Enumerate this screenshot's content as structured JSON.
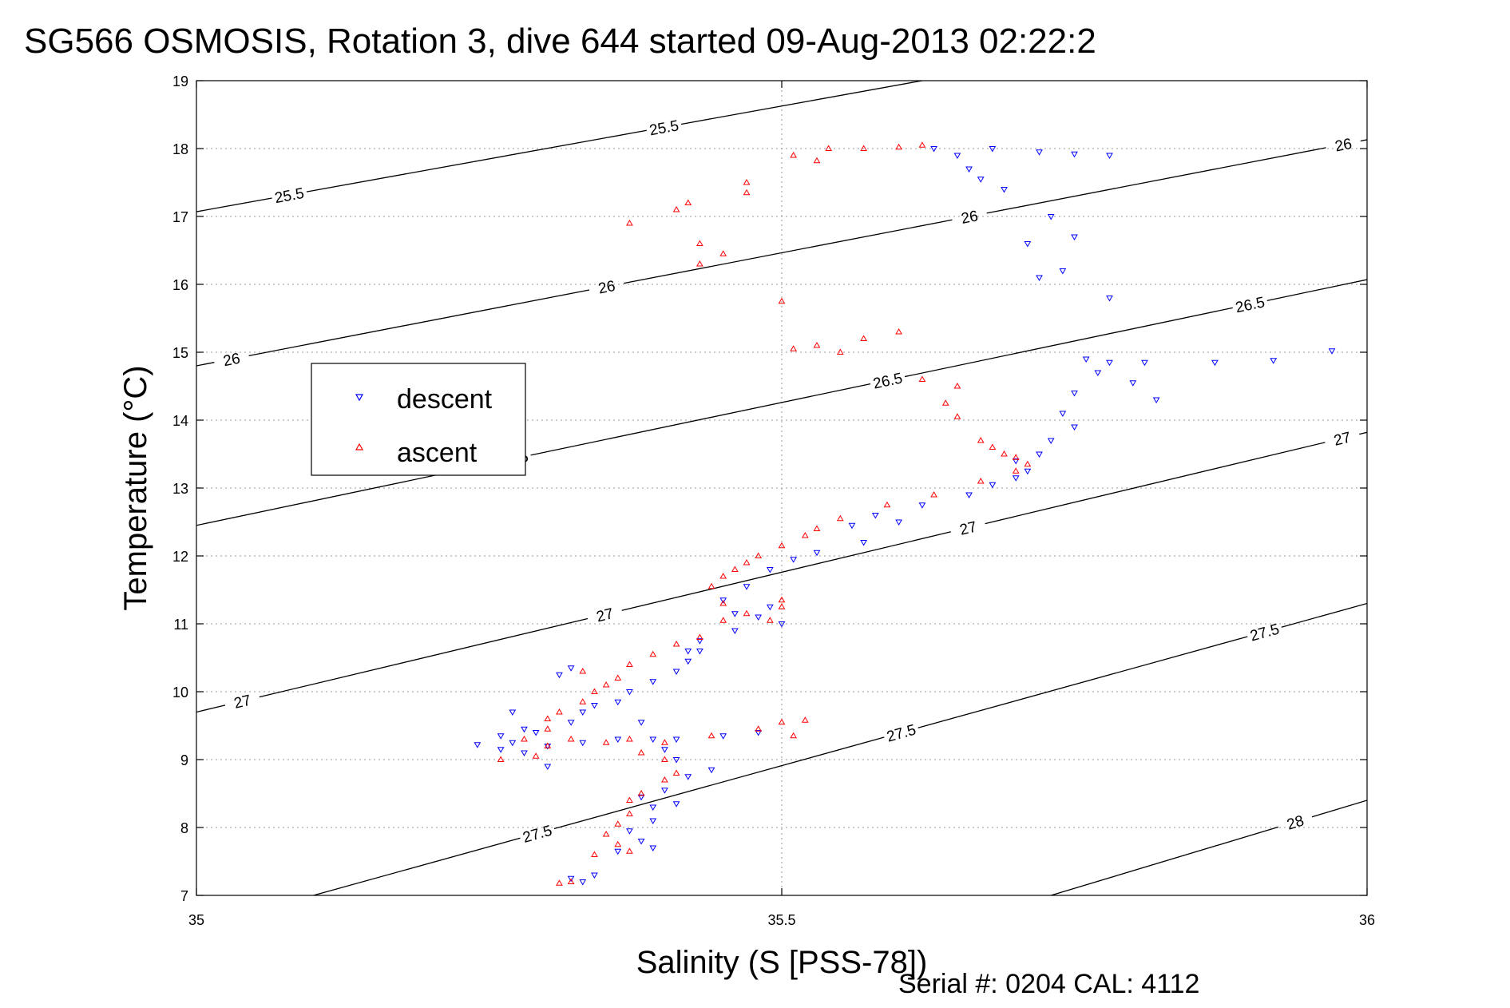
{
  "chart_data": {
    "type": "scatter",
    "title": "SG566 OSMOSIS, Rotation 3, dive 644 started 09-Aug-2013 02:22:2",
    "xlabel": "Salinity (S [PSS-78])",
    "ylabel": "Temperature (°C)",
    "xlim": [
      35,
      36
    ],
    "ylim": [
      7,
      19
    ],
    "xticks": [
      "35",
      "35.5",
      "36"
    ],
    "yticks": [
      "7",
      "8",
      "9",
      "10",
      "11",
      "12",
      "13",
      "14",
      "15",
      "16",
      "17",
      "18",
      "19"
    ],
    "grid": true,
    "legend_position": "upper-left",
    "density_contours": [
      {
        "level": 25.5,
        "label": "25.5",
        "points": [
          [
            35,
            17.07
          ],
          [
            35.62,
            19.0
          ]
        ],
        "label_positions": [
          [
            35.08,
            17.25
          ],
          [
            35.4,
            18.25
          ]
        ]
      },
      {
        "level": 26,
        "label": "26",
        "points": [
          [
            35,
            14.8
          ],
          [
            36,
            18.13
          ]
        ],
        "label_positions": [
          [
            35.03,
            14.9
          ],
          [
            35.35,
            16.0
          ],
          [
            35.66,
            17.03
          ],
          [
            35.98,
            18.03
          ]
        ]
      },
      {
        "level": 26.5,
        "label": "26.5",
        "points": [
          [
            35,
            12.45
          ],
          [
            36,
            16.07
          ]
        ],
        "label_positions": [
          [
            35.27,
            13.5
          ],
          [
            35.59,
            14.62
          ],
          [
            35.9,
            15.7
          ]
        ]
      },
      {
        "level": 27,
        "label": "27",
        "points": [
          [
            35,
            9.7
          ],
          [
            36,
            13.82
          ]
        ],
        "label_positions": [
          [
            35.04,
            9.8
          ],
          [
            35.35,
            11.05
          ],
          [
            35.66,
            12.35
          ],
          [
            35.98,
            13.64
          ]
        ]
      },
      {
        "level": 27.5,
        "label": "27.5",
        "points": [
          [
            35.1,
            7.0
          ],
          [
            36,
            11.3
          ]
        ],
        "label_positions": [
          [
            35.29,
            7.98
          ],
          [
            35.6,
            9.52
          ],
          [
            35.91,
            11.03
          ]
        ]
      },
      {
        "level": 28,
        "label": "28",
        "points": [
          [
            35.73,
            7.0
          ],
          [
            36,
            8.4
          ]
        ],
        "label_positions": [
          [
            35.94,
            8.0
          ]
        ]
      }
    ],
    "series": [
      {
        "name": "descent",
        "color": "#0000ff",
        "marker": "triangle-down",
        "points": [
          [
            35.63,
            18.0
          ],
          [
            35.65,
            17.9
          ],
          [
            35.66,
            17.7
          ],
          [
            35.67,
            17.55
          ],
          [
            35.69,
            17.4
          ],
          [
            35.68,
            18.0
          ],
          [
            35.72,
            17.95
          ],
          [
            35.75,
            17.92
          ],
          [
            35.78,
            17.9
          ],
          [
            35.73,
            17.0
          ],
          [
            35.75,
            16.7
          ],
          [
            35.71,
            16.6
          ],
          [
            35.72,
            16.1
          ],
          [
            35.74,
            16.2
          ],
          [
            35.78,
            15.8
          ],
          [
            35.76,
            14.9
          ],
          [
            35.78,
            14.85
          ],
          [
            35.81,
            14.85
          ],
          [
            35.87,
            14.85
          ],
          [
            35.92,
            14.88
          ],
          [
            35.97,
            15.02
          ],
          [
            35.77,
            14.7
          ],
          [
            35.8,
            14.55
          ],
          [
            35.82,
            14.3
          ],
          [
            35.75,
            14.4
          ],
          [
            35.74,
            14.1
          ],
          [
            35.75,
            13.9
          ],
          [
            35.73,
            13.7
          ],
          [
            35.72,
            13.5
          ],
          [
            35.7,
            13.4
          ],
          [
            35.71,
            13.25
          ],
          [
            35.7,
            13.15
          ],
          [
            35.68,
            13.05
          ],
          [
            35.66,
            12.9
          ],
          [
            35.62,
            12.75
          ],
          [
            35.58,
            12.6
          ],
          [
            35.56,
            12.45
          ],
          [
            35.6,
            12.5
          ],
          [
            35.57,
            12.2
          ],
          [
            35.53,
            12.05
          ],
          [
            35.51,
            11.95
          ],
          [
            35.49,
            11.8
          ],
          [
            35.47,
            11.55
          ],
          [
            35.45,
            11.35
          ],
          [
            35.46,
            11.15
          ],
          [
            35.48,
            11.1
          ],
          [
            35.49,
            11.25
          ],
          [
            35.5,
            11.0
          ],
          [
            35.46,
            10.9
          ],
          [
            35.43,
            10.6
          ],
          [
            35.42,
            10.45
          ],
          [
            35.41,
            10.3
          ],
          [
            35.39,
            10.15
          ],
          [
            35.37,
            10.0
          ],
          [
            35.36,
            9.85
          ],
          [
            35.34,
            9.8
          ],
          [
            35.33,
            9.7
          ],
          [
            35.32,
            9.55
          ],
          [
            35.29,
            9.4
          ],
          [
            35.27,
            9.25
          ],
          [
            35.26,
            9.15
          ],
          [
            35.28,
            9.1
          ],
          [
            35.3,
            9.2
          ],
          [
            35.33,
            9.25
          ],
          [
            35.36,
            9.3
          ],
          [
            35.39,
            9.3
          ],
          [
            35.41,
            9.3
          ],
          [
            35.45,
            9.35
          ],
          [
            35.48,
            9.4
          ],
          [
            35.4,
            9.15
          ],
          [
            35.41,
            9.0
          ],
          [
            35.44,
            8.85
          ],
          [
            35.42,
            8.75
          ],
          [
            35.4,
            8.55
          ],
          [
            35.38,
            8.45
          ],
          [
            35.39,
            8.3
          ],
          [
            35.41,
            8.35
          ],
          [
            35.39,
            8.1
          ],
          [
            35.37,
            7.95
          ],
          [
            35.38,
            7.8
          ],
          [
            35.39,
            7.7
          ],
          [
            35.36,
            7.65
          ],
          [
            35.32,
            7.25
          ],
          [
            35.33,
            7.2
          ],
          [
            35.34,
            7.3
          ],
          [
            35.3,
            8.9
          ],
          [
            35.27,
            9.7
          ],
          [
            35.38,
            9.55
          ],
          [
            35.42,
            10.6
          ],
          [
            35.43,
            10.75
          ],
          [
            35.31,
            10.25
          ],
          [
            35.32,
            10.35
          ],
          [
            35.28,
            9.45
          ],
          [
            35.26,
            9.35
          ],
          [
            35.24,
            9.22
          ]
        ]
      },
      {
        "name": "ascent",
        "color": "#ff0000",
        "marker": "triangle-up",
        "points": [
          [
            35.62,
            18.05
          ],
          [
            35.6,
            18.02
          ],
          [
            35.57,
            18.0
          ],
          [
            35.54,
            18.0
          ],
          [
            35.51,
            17.9
          ],
          [
            35.53,
            17.82
          ],
          [
            35.47,
            17.5
          ],
          [
            35.47,
            17.35
          ],
          [
            35.42,
            17.2
          ],
          [
            35.41,
            17.1
          ],
          [
            35.37,
            16.9
          ],
          [
            35.43,
            16.6
          ],
          [
            35.45,
            16.45
          ],
          [
            35.43,
            16.3
          ],
          [
            35.5,
            15.75
          ],
          [
            35.51,
            15.05
          ],
          [
            35.53,
            15.1
          ],
          [
            35.55,
            15.0
          ],
          [
            35.57,
            15.2
          ],
          [
            35.6,
            15.3
          ],
          [
            35.62,
            14.6
          ],
          [
            35.65,
            14.5
          ],
          [
            35.64,
            14.25
          ],
          [
            35.65,
            14.05
          ],
          [
            35.67,
            13.7
          ],
          [
            35.68,
            13.6
          ],
          [
            35.69,
            13.5
          ],
          [
            35.7,
            13.45
          ],
          [
            35.71,
            13.35
          ],
          [
            35.7,
            13.25
          ],
          [
            35.67,
            13.1
          ],
          [
            35.63,
            12.9
          ],
          [
            35.59,
            12.75
          ],
          [
            35.55,
            12.55
          ],
          [
            35.53,
            12.4
          ],
          [
            35.52,
            12.3
          ],
          [
            35.5,
            12.15
          ],
          [
            35.48,
            12.0
          ],
          [
            35.47,
            11.9
          ],
          [
            35.46,
            11.8
          ],
          [
            35.45,
            11.7
          ],
          [
            35.44,
            11.55
          ],
          [
            35.45,
            11.3
          ],
          [
            35.47,
            11.15
          ],
          [
            35.49,
            11.05
          ],
          [
            35.5,
            11.25
          ],
          [
            35.5,
            11.35
          ],
          [
            35.45,
            11.05
          ],
          [
            35.43,
            10.8
          ],
          [
            35.41,
            10.7
          ],
          [
            35.39,
            10.55
          ],
          [
            35.37,
            10.4
          ],
          [
            35.36,
            10.2
          ],
          [
            35.34,
            10.0
          ],
          [
            35.33,
            9.85
          ],
          [
            35.31,
            9.7
          ],
          [
            35.3,
            9.6
          ],
          [
            35.3,
            9.45
          ],
          [
            35.32,
            9.3
          ],
          [
            35.35,
            9.25
          ],
          [
            35.37,
            9.3
          ],
          [
            35.4,
            9.25
          ],
          [
            35.44,
            9.35
          ],
          [
            35.48,
            9.45
          ],
          [
            35.5,
            9.55
          ],
          [
            35.52,
            9.58
          ],
          [
            35.51,
            9.35
          ],
          [
            35.29,
            9.05
          ],
          [
            35.3,
            9.2
          ],
          [
            35.4,
            9.0
          ],
          [
            35.41,
            8.8
          ],
          [
            35.4,
            8.7
          ],
          [
            35.38,
            8.5
          ],
          [
            35.37,
            8.4
          ],
          [
            35.37,
            8.2
          ],
          [
            35.36,
            8.05
          ],
          [
            35.35,
            7.9
          ],
          [
            35.36,
            7.75
          ],
          [
            35.37,
            7.65
          ],
          [
            35.34,
            7.6
          ],
          [
            35.32,
            7.2
          ],
          [
            35.31,
            7.18
          ],
          [
            35.28,
            9.3
          ],
          [
            35.26,
            9.0
          ],
          [
            35.38,
            9.1
          ],
          [
            35.33,
            10.3
          ],
          [
            35.35,
            10.1
          ]
        ]
      }
    ],
    "annotation": "Serial #: 0204  CAL: 4112"
  },
  "colors": {
    "grid": "#9a9a9a",
    "axis": "#000000",
    "contour": "#000000",
    "descent": "#0000ff",
    "ascent": "#ff0000"
  }
}
